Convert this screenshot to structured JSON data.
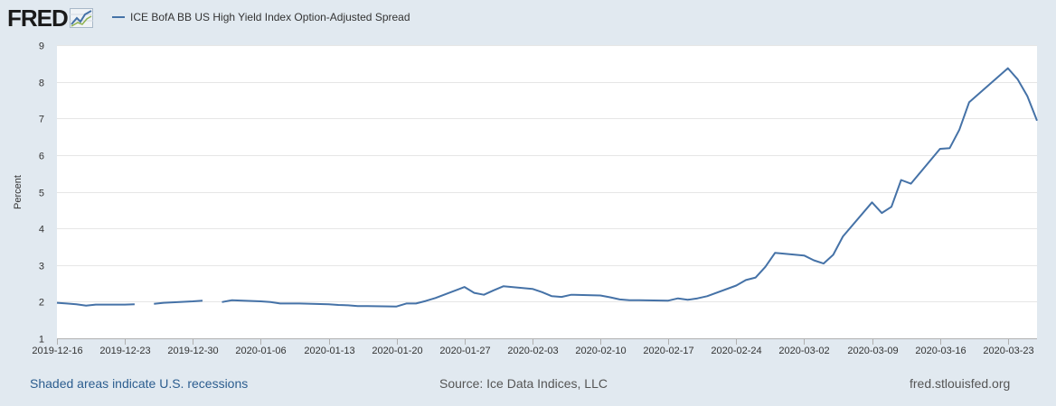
{
  "header": {
    "logo_text": "FRED",
    "logo_icon": "chart-line-icon"
  },
  "colors": {
    "background": "#e1e9f0",
    "plot_background": "#ffffff",
    "series": "#4572a7",
    "grid": "#e6e6e6",
    "link": "#2c5d8f"
  },
  "footer": {
    "recessions_note": "Shaded areas indicate U.S. recessions",
    "source": "Source: Ice Data Indices, LLC",
    "site": "fred.stlouisfed.org"
  },
  "chart_data": {
    "type": "line",
    "title": "",
    "xlabel": "",
    "ylabel": "Percent",
    "ylim": [
      1,
      9
    ],
    "yticks": [
      1,
      2,
      3,
      4,
      5,
      6,
      7,
      8,
      9
    ],
    "xlim": [
      "2019-12-16",
      "2020-03-26"
    ],
    "xticks": [
      "2019-12-16",
      "2019-12-23",
      "2019-12-30",
      "2020-01-06",
      "2020-01-13",
      "2020-01-20",
      "2020-01-27",
      "2020-02-03",
      "2020-02-10",
      "2020-02-17",
      "2020-02-24",
      "2020-03-02",
      "2020-03-09",
      "2020-03-16",
      "2020-03-23"
    ],
    "grid": true,
    "legend_position": "top-left",
    "series": [
      {
        "name": "ICE BofA BB US High Yield Index Option-Adjusted Spread",
        "points": [
          [
            "2019-12-16",
            1.97
          ],
          [
            "2019-12-17",
            1.95
          ],
          [
            "2019-12-18",
            1.93
          ],
          [
            "2019-12-19",
            1.89
          ],
          [
            "2019-12-20",
            1.92
          ],
          [
            "2019-12-23",
            1.92
          ],
          [
            "2019-12-24",
            1.93
          ],
          [
            "2019-12-26",
            1.94
          ],
          [
            "2019-12-27",
            1.97
          ],
          [
            "2019-12-30",
            2.01
          ],
          [
            "2019-12-31",
            2.03
          ],
          [
            "2020-01-02",
            1.99
          ],
          [
            "2020-01-03",
            2.04
          ],
          [
            "2020-01-06",
            2.01
          ],
          [
            "2020-01-07",
            1.99
          ],
          [
            "2020-01-08",
            1.95
          ],
          [
            "2020-01-09",
            1.95
          ],
          [
            "2020-01-10",
            1.95
          ],
          [
            "2020-01-13",
            1.93
          ],
          [
            "2020-01-14",
            1.91
          ],
          [
            "2020-01-15",
            1.9
          ],
          [
            "2020-01-16",
            1.88
          ],
          [
            "2020-01-17",
            1.88
          ],
          [
            "2020-01-20",
            1.87
          ],
          [
            "2020-01-21",
            1.95
          ],
          [
            "2020-01-22",
            1.95
          ],
          [
            "2020-01-23",
            2.02
          ],
          [
            "2020-01-24",
            2.1
          ],
          [
            "2020-01-27",
            2.4
          ],
          [
            "2020-01-28",
            2.24
          ],
          [
            "2020-01-29",
            2.19
          ],
          [
            "2020-01-30",
            2.31
          ],
          [
            "2020-01-31",
            2.42
          ],
          [
            "2020-02-03",
            2.35
          ],
          [
            "2020-02-04",
            2.26
          ],
          [
            "2020-02-05",
            2.15
          ],
          [
            "2020-02-06",
            2.13
          ],
          [
            "2020-02-07",
            2.19
          ],
          [
            "2020-02-10",
            2.17
          ],
          [
            "2020-02-11",
            2.12
          ],
          [
            "2020-02-12",
            2.06
          ],
          [
            "2020-02-13",
            2.04
          ],
          [
            "2020-02-14",
            2.04
          ],
          [
            "2020-02-17",
            2.03
          ],
          [
            "2020-02-18",
            2.09
          ],
          [
            "2020-02-19",
            2.05
          ],
          [
            "2020-02-20",
            2.09
          ],
          [
            "2020-02-21",
            2.15
          ],
          [
            "2020-02-24",
            2.44
          ],
          [
            "2020-02-25",
            2.59
          ],
          [
            "2020-02-26",
            2.66
          ],
          [
            "2020-02-27",
            2.95
          ],
          [
            "2020-02-28",
            3.33
          ],
          [
            "2020-03-02",
            3.26
          ],
          [
            "2020-03-03",
            3.13
          ],
          [
            "2020-03-04",
            3.04
          ],
          [
            "2020-03-05",
            3.28
          ],
          [
            "2020-03-06",
            3.78
          ],
          [
            "2020-03-09",
            4.71
          ],
          [
            "2020-03-10",
            4.42
          ],
          [
            "2020-03-11",
            4.59
          ],
          [
            "2020-03-12",
            5.32
          ],
          [
            "2020-03-13",
            5.22
          ],
          [
            "2020-03-16",
            6.17
          ],
          [
            "2020-03-17",
            6.19
          ],
          [
            "2020-03-18",
            6.69
          ],
          [
            "2020-03-19",
            7.44
          ],
          [
            "2020-03-23",
            8.37
          ],
          [
            "2020-03-24",
            8.07
          ],
          [
            "2020-03-25",
            7.61
          ],
          [
            "2020-03-26",
            6.94
          ]
        ]
      }
    ]
  }
}
